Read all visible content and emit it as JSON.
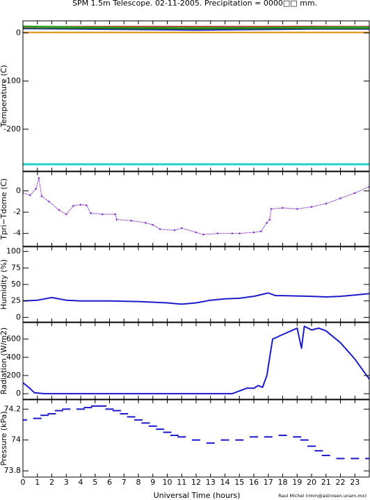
{
  "title": "SPM 1.5m Telescope. 02-11-2005. Precipitation = 0000□□ mm.",
  "credit": "Raul Michel (rmm@astrosen.unam.mx)",
  "chart_data": [
    {
      "type": "line",
      "name": "temperature",
      "ylabel": "Temperature (C)",
      "ylim": [
        -287,
        25
      ],
      "yticks": [
        0,
        -100,
        -200
      ],
      "series": [
        {
          "color": "#cc2222",
          "points": [
            [
              0,
              13
            ],
            [
              5,
              13
            ],
            [
              10,
              13
            ],
            [
              15,
              13
            ],
            [
              20,
              13.5
            ],
            [
              24,
              13
            ]
          ]
        },
        {
          "color": "#22aa22",
          "points": [
            [
              0,
              14
            ],
            [
              4,
              12
            ],
            [
              8,
              11
            ],
            [
              12,
              11
            ],
            [
              16,
              11
            ],
            [
              20,
              12
            ],
            [
              24,
              12
            ]
          ]
        },
        {
          "color": "#2222cc",
          "points": [
            [
              0,
              9
            ],
            [
              4,
              8
            ],
            [
              8,
              7
            ],
            [
              12,
              6
            ],
            [
              16,
              7
            ],
            [
              20,
              8
            ],
            [
              24,
              8
            ]
          ]
        },
        {
          "color": "#226622",
          "points": [
            [
              0,
              10
            ],
            [
              6,
              9
            ],
            [
              12,
              8
            ],
            [
              18,
              9
            ],
            [
              24,
              9
            ]
          ]
        },
        {
          "color": "#dd8800",
          "points": [
            [
              0,
              1
            ],
            [
              24,
              1
            ]
          ]
        },
        {
          "color": "#22d0d0",
          "points": [
            [
              0,
              -273
            ],
            [
              24,
              -273
            ]
          ]
        }
      ]
    },
    {
      "type": "scatter",
      "name": "tpri-tdome",
      "ylabel": "Tpri−Tdome (C)",
      "ylim": [
        -5.2,
        1.8
      ],
      "yticks": [
        0,
        -2,
        -4
      ],
      "series": [
        {
          "color": "#8833cc",
          "points": [
            [
              0,
              -0.2
            ],
            [
              0.5,
              -0.4
            ],
            [
              0.9,
              0.2
            ],
            [
              1.1,
              1.2
            ],
            [
              1.3,
              -0.5
            ],
            [
              1.8,
              -1.0
            ],
            [
              2.5,
              -1.8
            ],
            [
              3.0,
              -2.2
            ],
            [
              3.5,
              -1.4
            ],
            [
              4.0,
              -1.3
            ],
            [
              4.4,
              -1.35
            ],
            [
              4.7,
              -2.1
            ],
            [
              5.5,
              -2.2
            ],
            [
              6.4,
              -2.2
            ],
            [
              6.5,
              -2.7
            ],
            [
              7.5,
              -2.8
            ],
            [
              8.5,
              -3.0
            ],
            [
              9.0,
              -3.2
            ],
            [
              9.5,
              -3.6
            ],
            [
              10.5,
              -3.7
            ],
            [
              11.0,
              -3.5
            ],
            [
              12.0,
              -3.9
            ],
            [
              12.5,
              -4.1
            ],
            [
              13.5,
              -4.0
            ],
            [
              14.5,
              -4.0
            ],
            [
              15.0,
              -4.0
            ],
            [
              16.0,
              -3.9
            ],
            [
              16.5,
              -3.8
            ],
            [
              16.9,
              -3.0
            ],
            [
              17.1,
              -2.7
            ],
            [
              17.2,
              -1.7
            ],
            [
              18.0,
              -1.6
            ],
            [
              19.0,
              -1.7
            ],
            [
              20.0,
              -1.5
            ],
            [
              21.0,
              -1.2
            ],
            [
              22.0,
              -0.7
            ],
            [
              23.0,
              -0.2
            ],
            [
              24.0,
              0.4
            ]
          ]
        }
      ]
    },
    {
      "type": "line",
      "name": "humidity",
      "ylabel": "Humidity (%)",
      "ylim": [
        -7,
        107
      ],
      "yticks": [
        0,
        25,
        50,
        75,
        100
      ],
      "series": [
        {
          "color": "#1a1acc",
          "points": [
            [
              0,
              25
            ],
            [
              1,
              26
            ],
            [
              2,
              30
            ],
            [
              3,
              26
            ],
            [
              4,
              25
            ],
            [
              6,
              25
            ],
            [
              8,
              24
            ],
            [
              10,
              22
            ],
            [
              11,
              20
            ],
            [
              12,
              22
            ],
            [
              13,
              26
            ],
            [
              14,
              28
            ],
            [
              15,
              29
            ],
            [
              16,
              32
            ],
            [
              17,
              37
            ],
            [
              17.5,
              33
            ],
            [
              18,
              33
            ],
            [
              20,
              32
            ],
            [
              21,
              31
            ],
            [
              22,
              32
            ],
            [
              23,
              34
            ],
            [
              24,
              36
            ]
          ]
        }
      ]
    },
    {
      "type": "line",
      "name": "radiation",
      "ylabel": "Radiation (W/m2)",
      "ylim": [
        -60,
        780
      ],
      "yticks": [
        0,
        200,
        400,
        600
      ],
      "series": [
        {
          "color": "#1a1acc",
          "points": [
            [
              0,
              120
            ],
            [
              0.4,
              70
            ],
            [
              0.8,
              10
            ],
            [
              1.5,
              0
            ],
            [
              5,
              0
            ],
            [
              10,
              0
            ],
            [
              14.5,
              0
            ],
            [
              15.5,
              60
            ],
            [
              16.0,
              60
            ],
            [
              16.3,
              90
            ],
            [
              16.6,
              70
            ],
            [
              16.9,
              200
            ],
            [
              17.1,
              400
            ],
            [
              17.3,
              600
            ],
            [
              18.0,
              650
            ],
            [
              19.0,
              720
            ],
            [
              19.3,
              500
            ],
            [
              19.5,
              740
            ],
            [
              20.0,
              700
            ],
            [
              20.5,
              720
            ],
            [
              21.0,
              690
            ],
            [
              22.0,
              560
            ],
            [
              23.0,
              380
            ],
            [
              24.0,
              160
            ]
          ]
        }
      ]
    },
    {
      "type": "scatter",
      "name": "pressure",
      "ylabel": "Pressure (kPa)",
      "ylim": [
        73.76,
        74.26
      ],
      "yticks": [
        73.8,
        74,
        74.2
      ],
      "series": [
        {
          "color": "#1a1acc",
          "points": [
            [
              0,
              74.13
            ],
            [
              1,
              74.14
            ],
            [
              1.5,
              74.16
            ],
            [
              2,
              74.17
            ],
            [
              2.5,
              74.19
            ],
            [
              3,
              74.2
            ],
            [
              4.0,
              74.2
            ],
            [
              4.5,
              74.21
            ],
            [
              5,
              74.22
            ],
            [
              5.5,
              74.22
            ],
            [
              6,
              74.2
            ],
            [
              6.5,
              74.19
            ],
            [
              7,
              74.17
            ],
            [
              7.5,
              74.15
            ],
            [
              8,
              74.13
            ],
            [
              8.5,
              74.11
            ],
            [
              9,
              74.09
            ],
            [
              9.5,
              74.07
            ],
            [
              10,
              74.05
            ],
            [
              10.5,
              74.03
            ],
            [
              11,
              74.02
            ],
            [
              12,
              74.0
            ],
            [
              13,
              73.98
            ],
            [
              14,
              74.0
            ],
            [
              15,
              74.0
            ],
            [
              16,
              74.02
            ],
            [
              17,
              74.02
            ],
            [
              18,
              74.03
            ],
            [
              19,
              74.02
            ],
            [
              19.5,
              74.0
            ],
            [
              20,
              73.96
            ],
            [
              20.5,
              73.93
            ],
            [
              21,
              73.9
            ],
            [
              22,
              73.88
            ],
            [
              23,
              73.88
            ],
            [
              24,
              73.88
            ]
          ]
        }
      ]
    }
  ],
  "x_axis": {
    "label": "Universal Time (hours)",
    "ticks": [
      "0",
      "1",
      "2",
      "3",
      "4",
      "5",
      "6",
      "7",
      "8",
      "9",
      "10",
      "11",
      "12",
      "13",
      "14",
      "15",
      "16",
      "17",
      "18",
      "19",
      "20",
      "21",
      "22",
      "23"
    ],
    "xlim": [
      0,
      24
    ]
  }
}
